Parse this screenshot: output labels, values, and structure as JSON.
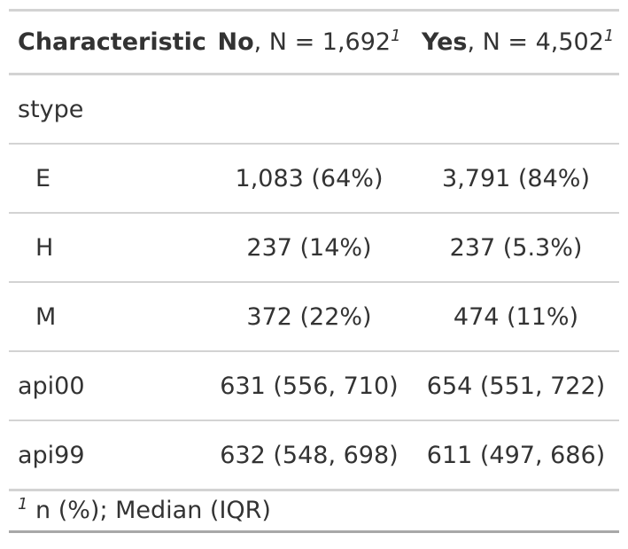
{
  "header": {
    "characteristic": "Characteristic",
    "no": {
      "group": "No",
      "n_text": ", N = 1,692",
      "footnote_mark": "1"
    },
    "yes": {
      "group": "Yes",
      "n_text": ", N = 4,502",
      "footnote_mark": "1"
    }
  },
  "rows": {
    "stype": {
      "label": "stype"
    },
    "e": {
      "label": "E",
      "no": "1,083 (64%)",
      "yes": "3,791 (84%)"
    },
    "h": {
      "label": "H",
      "no": "237 (14%)",
      "yes": "237 (5.3%)"
    },
    "m": {
      "label": "M",
      "no": "372 (22%)",
      "yes": "474 (11%)"
    },
    "api00": {
      "label": "api00",
      "no": "631 (556, 710)",
      "yes": "654 (551, 722)"
    },
    "api99": {
      "label": "api99",
      "no": "632 (548, 698)",
      "yes": "611 (497, 686)"
    }
  },
  "footnote": {
    "mark": "1",
    "text": " n (%); Median (IQR)"
  }
}
